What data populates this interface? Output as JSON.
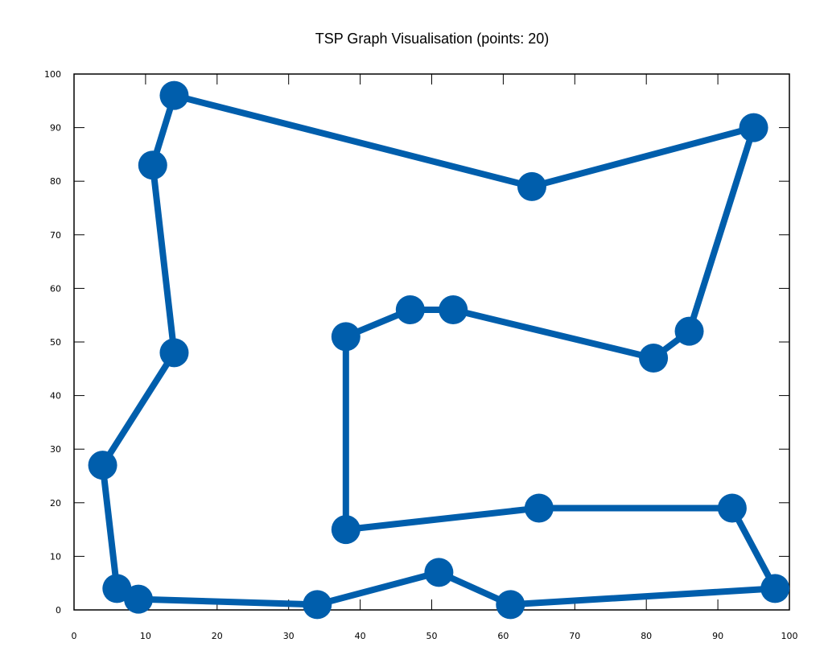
{
  "chart_data": {
    "type": "line",
    "title": "TSP Graph Visualisation (points: 20)",
    "xlabel": "",
    "ylabel": "",
    "xlim": [
      0,
      100
    ],
    "ylim": [
      0,
      100
    ],
    "xticks": [
      "0",
      "10",
      "20",
      "30",
      "40",
      "50",
      "60",
      "70",
      "80",
      "90",
      "100"
    ],
    "yticks": [
      "0",
      "10",
      "20",
      "30",
      "40",
      "50",
      "60",
      "70",
      "80",
      "90",
      "100"
    ],
    "grid": false,
    "legend": "none",
    "color": "#005eac",
    "series": [
      {
        "points": [
          [
            14,
            96
          ],
          [
            64,
            79
          ],
          [
            95,
            90
          ],
          [
            86,
            52
          ],
          [
            81,
            47
          ],
          [
            53,
            56
          ],
          [
            47,
            56
          ],
          [
            38,
            51
          ],
          [
            38,
            15
          ],
          [
            65,
            19
          ],
          [
            92,
            19
          ],
          [
            98,
            4
          ],
          [
            61,
            1
          ],
          [
            51,
            7
          ],
          [
            34,
            1
          ],
          [
            9,
            2
          ],
          [
            6,
            4
          ],
          [
            4,
            27
          ],
          [
            14,
            48
          ],
          [
            11,
            83
          ]
        ]
      }
    ]
  }
}
